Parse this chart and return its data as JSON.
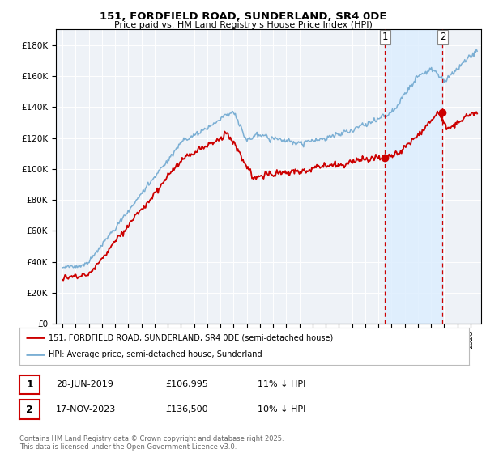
{
  "title": "151, FORDFIELD ROAD, SUNDERLAND, SR4 0DE",
  "subtitle": "Price paid vs. HM Land Registry's House Price Index (HPI)",
  "ylim": [
    0,
    190000
  ],
  "yticks": [
    0,
    20000,
    40000,
    60000,
    80000,
    100000,
    120000,
    140000,
    160000,
    180000
  ],
  "hpi_color": "#7bafd4",
  "price_color": "#cc0000",
  "vline_color": "#cc0000",
  "shade_color": "#ddeeff",
  "legend_line1": "151, FORDFIELD ROAD, SUNDERLAND, SR4 0DE (semi-detached house)",
  "legend_line2": "HPI: Average price, semi-detached house, Sunderland",
  "footnote": "Contains HM Land Registry data © Crown copyright and database right 2025.\nThis data is licensed under the Open Government Licence v3.0.",
  "background_color": "#ffffff",
  "plot_bg_color": "#eef2f7",
  "sale1_x": 2019.497,
  "sale1_y": 106995,
  "sale2_x": 2023.877,
  "sale2_y": 136500,
  "xmin": 1994.5,
  "xmax": 2026.8
}
